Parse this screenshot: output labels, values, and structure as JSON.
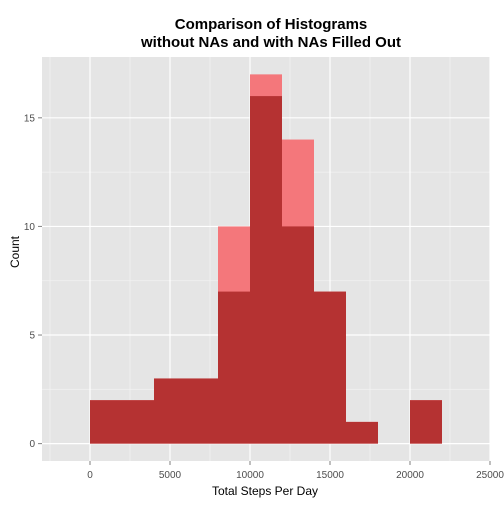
{
  "chart_data": {
    "type": "bar",
    "title_line1": "Comparison of Histograms",
    "title_line2": "without NAs and with NAs Filled Out",
    "xlabel": "Total Steps Per Day",
    "ylabel": "Count",
    "xlim": [
      -3000,
      25000
    ],
    "ylim": [
      -0.8,
      17.8
    ],
    "x_ticks": [
      0,
      5000,
      10000,
      15000,
      20000,
      25000
    ],
    "x_tick_labels": [
      "0",
      "5000",
      "10000",
      "15000",
      "20000",
      "25000"
    ],
    "y_ticks": [
      0,
      5,
      10,
      15
    ],
    "y_tick_labels": [
      "0",
      "5",
      "10",
      "15"
    ],
    "grid": true,
    "bin_width": 2000,
    "bin_starts": [
      0,
      2000,
      4000,
      6000,
      8000,
      10000,
      12000,
      14000,
      16000,
      18000,
      20000
    ],
    "series": [
      {
        "color": "#F4777B",
        "values": [
          2,
          2,
          3,
          3,
          10,
          17,
          14,
          7,
          1,
          0,
          2
        ]
      },
      {
        "color": "#B53232",
        "values": [
          2,
          2,
          3,
          3,
          7,
          16,
          10,
          7,
          1,
          0,
          2
        ]
      }
    ],
    "colors": {
      "panel_background": "#E5E5E5",
      "grid_major": "#FFFFFF",
      "grid_minor": "#F2F2F2",
      "tick_label": "#4D4D4D"
    }
  }
}
